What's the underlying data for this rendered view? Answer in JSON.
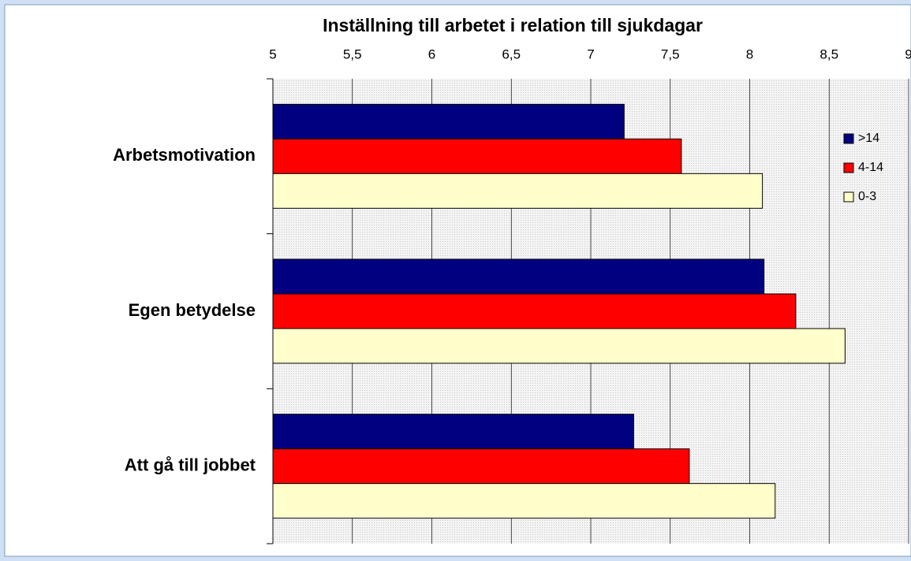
{
  "chart_data": {
    "type": "hbar",
    "title": "Inställning till arbetet i relation till sjukdagar",
    "categories": [
      "Arbetsmotivation",
      "Egen betydelse",
      "Att gå till jobbet"
    ],
    "series": [
      {
        "name": ">14",
        "color": "#000080",
        "values": [
          7.21,
          8.09,
          7.27
        ]
      },
      {
        "name": "4-14",
        "color": "#ff0000",
        "values": [
          7.57,
          8.29,
          7.62
        ]
      },
      {
        "name": "0-3",
        "color": "#ffffcc",
        "values": [
          8.08,
          8.6,
          8.16
        ]
      }
    ],
    "xlim": [
      5,
      9
    ],
    "xticks": [
      5,
      {
        "value": 5.5,
        "label": "5,5"
      },
      6,
      {
        "value": 6.5,
        "label": "6,5"
      },
      7,
      {
        "value": 7.5,
        "label": "7,5"
      },
      8,
      {
        "value": 8.5,
        "label": "8,5"
      },
      9
    ],
    "grid": true,
    "legend": "right"
  }
}
